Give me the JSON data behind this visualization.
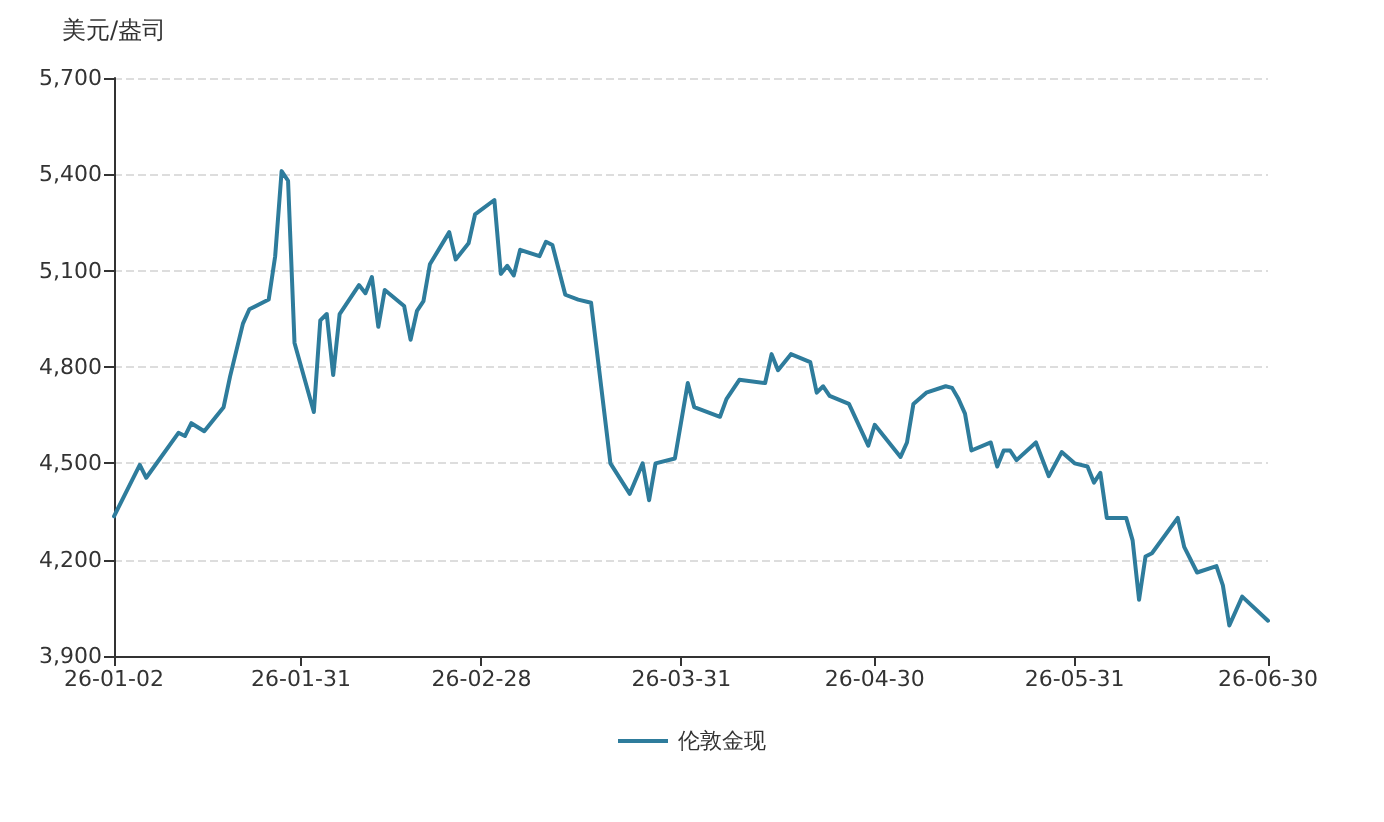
{
  "chart_data": {
    "type": "line",
    "ylabel": "美元/盎司",
    "x": [
      "--01-02",
      "--01-06",
      "--01-07",
      "--01-12",
      "--01-13",
      "--01-14",
      "--01-16",
      "--01-19",
      "--01-20",
      "--01-22",
      "--01-23",
      "--01-26",
      "--01-27",
      "--01-28",
      "--01-29",
      "--01-30",
      "--02-02",
      "--02-03",
      "--02-04",
      "--02-05",
      "--02-06",
      "--02-09",
      "--02-10",
      "--02-11",
      "--02-12",
      "--02-13",
      "--02-16",
      "--02-17",
      "--02-18",
      "--02-19",
      "--02-20",
      "--02-23",
      "--02-24",
      "--02-26",
      "--02-27",
      "--03-02",
      "--03-03",
      "--03-04",
      "--03-05",
      "--03-06",
      "--03-09",
      "--03-10",
      "--03-11",
      "--03-13",
      "--03-15",
      "--03-17",
      "--03-20",
      "--03-23",
      "--03-25",
      "--03-26",
      "--03-27",
      "--03-30",
      "--04-01",
      "--04-02",
      "--04-06",
      "--04-07",
      "--04-09",
      "--04-13",
      "--04-14",
      "--04-15",
      "--04-17",
      "--04-20",
      "--04-21",
      "--04-22",
      "--04-23",
      "--04-26",
      "--04-29",
      "--04-30",
      "--05-04",
      "--05-05",
      "--05-06",
      "--05-08",
      "--05-11",
      "--05-12",
      "--05-13",
      "--05-14",
      "--05-15",
      "--05-18",
      "--05-19",
      "--05-20",
      "--05-21",
      "--05-22",
      "--05-25",
      "--05-27",
      "--05-29",
      "--05-31",
      "--06-02",
      "--06-03",
      "--06-04",
      "--06-05",
      "--06-08",
      "--06-09",
      "--06-10",
      "--06-11",
      "--06-12",
      "--06-16",
      "--06-17",
      "--06-19",
      "--06-22",
      "--06-23",
      "--06-24",
      "--06-26",
      "--06-30"
    ],
    "series": [
      {
        "name": "伦敦金现",
        "color": "#2e7c9c",
        "values": [
          4335,
          4495,
          4455,
          4595,
          4585,
          4625,
          4600,
          4675,
          4770,
          4935,
          4980,
          5010,
          5145,
          5410,
          5380,
          4875,
          4660,
          4945,
          4965,
          4775,
          4965,
          5055,
          5030,
          5080,
          4925,
          5040,
          4990,
          4885,
          4975,
          5005,
          5120,
          5220,
          5135,
          5185,
          5275,
          5320,
          5090,
          5115,
          5085,
          5165,
          5145,
          5190,
          5180,
          5025,
          5010,
          5000,
          4500,
          4405,
          4500,
          4385,
          4500,
          4515,
          4750,
          4675,
          4645,
          4700,
          4760,
          4750,
          4840,
          4790,
          4840,
          4815,
          4720,
          4740,
          4710,
          4685,
          4555,
          4620,
          4520,
          4565,
          4685,
          4720,
          4740,
          4735,
          4700,
          4655,
          4540,
          4565,
          4490,
          4540,
          4540,
          4510,
          4565,
          4460,
          4535,
          4500,
          4490,
          4440,
          4470,
          4330,
          4330,
          4260,
          4075,
          4210,
          4220,
          4330,
          4240,
          4160,
          4180,
          4120,
          3995,
          4085,
          4010
        ]
      }
    ],
    "xlim": [
      "--01-02",
      "--06-30"
    ],
    "xticks": [
      {
        "value": "--01-02",
        "label": "26-01-02"
      },
      {
        "value": "--01-31",
        "label": "26-01-31"
      },
      {
        "value": "--02-28",
        "label": "26-02-28"
      },
      {
        "value": "--03-31",
        "label": "26-03-31"
      },
      {
        "value": "--04-30",
        "label": "26-04-30"
      },
      {
        "value": "--05-31",
        "label": "26-05-31"
      },
      {
        "value": "--06-30",
        "label": "26-06-30"
      }
    ],
    "ylim": [
      3900,
      5700
    ],
    "yticks": [
      {
        "value": 3900,
        "label": "3,900"
      },
      {
        "value": 4200,
        "label": "4,200"
      },
      {
        "value": 4500,
        "label": "4,500"
      },
      {
        "value": 4800,
        "label": "4,800"
      },
      {
        "value": 5100,
        "label": "5,100"
      },
      {
        "value": 5400,
        "label": "5,400"
      },
      {
        "value": 5700,
        "label": "5,700"
      }
    ],
    "grid": "y",
    "legend": "bottom",
    "marker": "none",
    "line_style": "solid"
  }
}
